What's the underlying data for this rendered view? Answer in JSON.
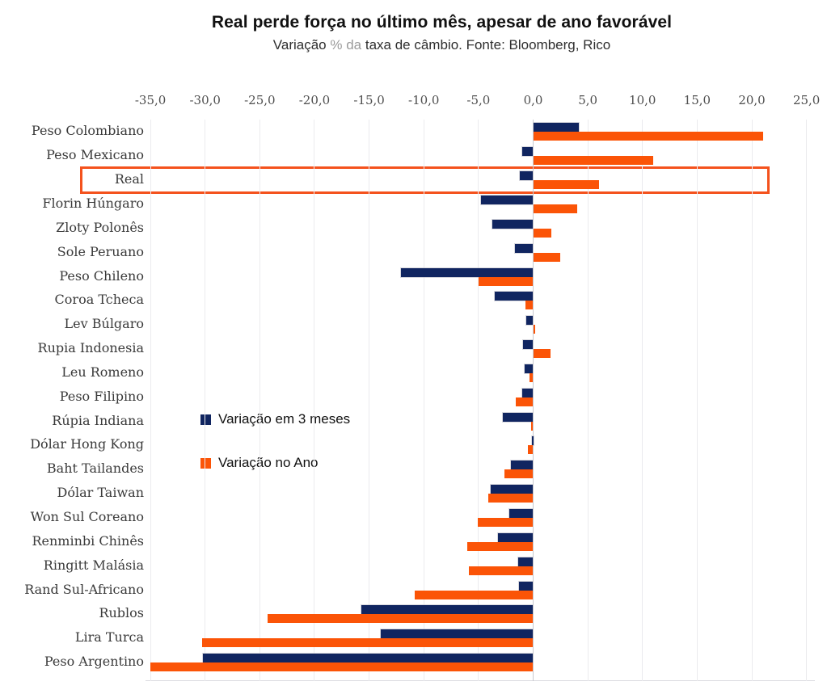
{
  "title": "Real perde força no último mês, apesar de ano favorável",
  "subtitle": {
    "part1": "Variação",
    "muted": "% da",
    "part2": "taxa de câmbio. Fonte: Bloomberg, Rico"
  },
  "legend": {
    "items": [
      {
        "label": "Variação em 3 meses",
        "color": "#102560"
      },
      {
        "label": "Variação no Ano",
        "color": "#fb5407"
      }
    ],
    "position": "inside-left-middle"
  },
  "colors": {
    "series_3m": "#102560",
    "series_ano": "#fb5407",
    "highlight_border": "#f4521d",
    "gridline": "#ebebee",
    "zero_line": "#c9c9cf",
    "subtitle_muted": "#9b9b9b"
  },
  "chart_data": {
    "type": "bar",
    "orientation": "horizontal",
    "title": "Real perde força no último mês, apesar de ano favorável",
    "subtitle": "Variação % da taxa de câmbio. Fonte: Bloomberg, Rico",
    "grid": true,
    "legend_position": "inside-left-middle",
    "xlim": [
      -35,
      25
    ],
    "x_tick_step": 5,
    "ticks": [
      {
        "label": "-35,0",
        "value": -35
      },
      {
        "label": "-30,0",
        "value": -30
      },
      {
        "label": "-25,0",
        "value": -25
      },
      {
        "label": "-20,0",
        "value": -20
      },
      {
        "label": "-15,0",
        "value": -15
      },
      {
        "label": "-10,0",
        "value": -10
      },
      {
        "label": "-5,0",
        "value": -5
      },
      {
        "label": "0,0",
        "value": 0
      },
      {
        "label": "5,0",
        "value": 5
      },
      {
        "label": "10,0",
        "value": 10
      },
      {
        "label": "15,0",
        "value": 15
      },
      {
        "label": "20,0",
        "value": 20
      },
      {
        "label": "25,0",
        "value": 25
      }
    ],
    "categories": [
      "Peso Colombiano",
      "Peso Mexicano",
      "Real",
      "Florin Húngaro",
      "Zloty Polonês",
      "Sole Peruano",
      "Peso Chileno",
      "Coroa Tcheca",
      "Lev Búlgaro",
      "Rupia Indonesia",
      "Leu Romeno",
      "Peso Filipino",
      "Rúpia Indiana",
      "Dólar Hong Kong",
      "Baht Tailandes",
      "Dólar Taiwan",
      "Won Sul Coreano",
      "Renminbi Chinês",
      "Ringitt Malásia",
      "Rand Sul-Africano",
      "Rublos",
      "Lira Turca",
      "Peso Argentino"
    ],
    "series": [
      {
        "name": "Variação em 3 meses",
        "color": "#102560",
        "values": [
          4.2,
          -1.0,
          -1.2,
          -4.8,
          -3.7,
          -1.7,
          -12.1,
          -3.5,
          -0.6,
          -0.9,
          -0.8,
          -1.0,
          -2.8,
          -0.1,
          -2.0,
          -3.9,
          -2.2,
          -3.2,
          -1.4,
          -1.3,
          -15.7,
          -13.9,
          -30.2
        ]
      },
      {
        "name": "Variação no Ano",
        "color": "#fb5407",
        "values": [
          21.0,
          11.0,
          6.0,
          4.0,
          1.7,
          2.5,
          -5.0,
          -0.7,
          0.2,
          1.6,
          -0.3,
          -1.6,
          -0.2,
          -0.5,
          -2.6,
          -4.1,
          -5.1,
          -6.0,
          -5.9,
          -10.8,
          -24.3,
          -30.3,
          -35.0
        ]
      }
    ],
    "highlighted_category": "Real"
  }
}
